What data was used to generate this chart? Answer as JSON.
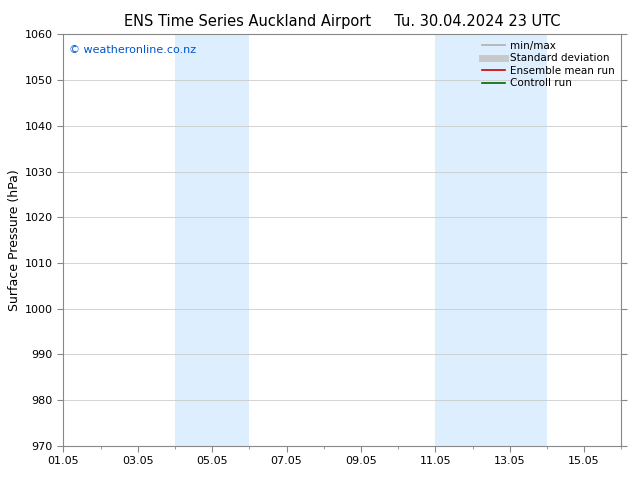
{
  "title_left": "ENS Time Series Auckland Airport",
  "title_right": "Tu. 30.04.2024 23 UTC",
  "ylabel": "Surface Pressure (hPa)",
  "ylim": [
    970,
    1060
  ],
  "yticks": [
    970,
    980,
    990,
    1000,
    1010,
    1020,
    1030,
    1040,
    1050,
    1060
  ],
  "xlim_start": 0.0,
  "xlim_end": 15.0,
  "xtick_labels": [
    "01.05",
    "03.05",
    "05.05",
    "07.05",
    "09.05",
    "11.05",
    "13.05",
    "15.05"
  ],
  "xtick_positions": [
    0,
    2,
    4,
    6,
    8,
    10,
    12,
    14
  ],
  "shaded_bands": [
    {
      "x_start": 3.0,
      "x_end": 5.0
    },
    {
      "x_start": 10.0,
      "x_end": 13.0
    }
  ],
  "shade_color": "#ddeeff",
  "watermark_text": "© weatheronline.co.nz",
  "watermark_color": "#0055cc",
  "legend_entries": [
    {
      "label": "min/max",
      "color": "#b0b0b0",
      "lw": 1.2
    },
    {
      "label": "Standard deviation",
      "color": "#c8c8c8",
      "lw": 5
    },
    {
      "label": "Ensemble mean run",
      "color": "#cc0000",
      "lw": 1.2
    },
    {
      "label": "Controll run",
      "color": "#006600",
      "lw": 1.2
    }
  ],
  "bg_color": "#ffffff",
  "grid_color": "#cccccc",
  "title_fontsize": 10.5,
  "tick_fontsize": 8,
  "ylabel_fontsize": 9,
  "legend_fontsize": 7.5
}
